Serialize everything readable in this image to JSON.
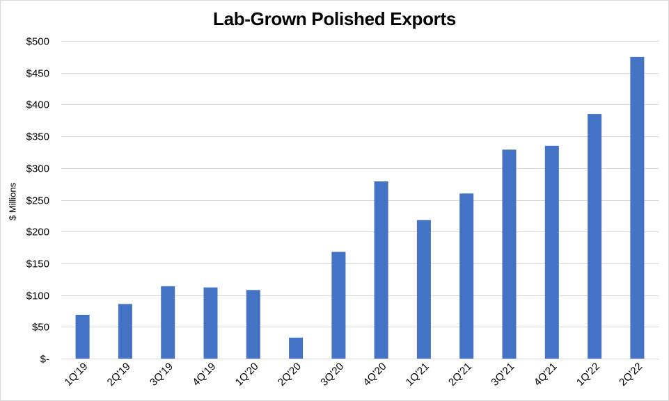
{
  "chart_data": {
    "type": "bar",
    "title": "Lab-Grown Polished Exports",
    "xlabel": "",
    "ylabel": "$ Millions",
    "categories": [
      "1Q'19",
      "2Q'19",
      "3Q'19",
      "4Q'19",
      "1Q'20",
      "2Q'20",
      "3Q'20",
      "4Q'20",
      "1Q'21",
      "2Q'21",
      "3Q'21",
      "4Q'21",
      "1Q'22",
      "2Q'22"
    ],
    "values": [
      69,
      86,
      114,
      112,
      108,
      33,
      168,
      279,
      218,
      260,
      329,
      335,
      385,
      475
    ],
    "ylim": [
      0,
      500
    ],
    "yticks": [
      0,
      50,
      100,
      150,
      200,
      250,
      300,
      350,
      400,
      450,
      500
    ],
    "ytick_labels": [
      "$-",
      "$50",
      "$100",
      "$150",
      "$200",
      "$250",
      "$300",
      "$350",
      "$400",
      "$450",
      "$500"
    ],
    "grid": true,
    "legend": "none",
    "colors": {
      "bar": "#4472C4",
      "grid": "#d9d9d9",
      "axis": "#d9d9d9"
    }
  }
}
